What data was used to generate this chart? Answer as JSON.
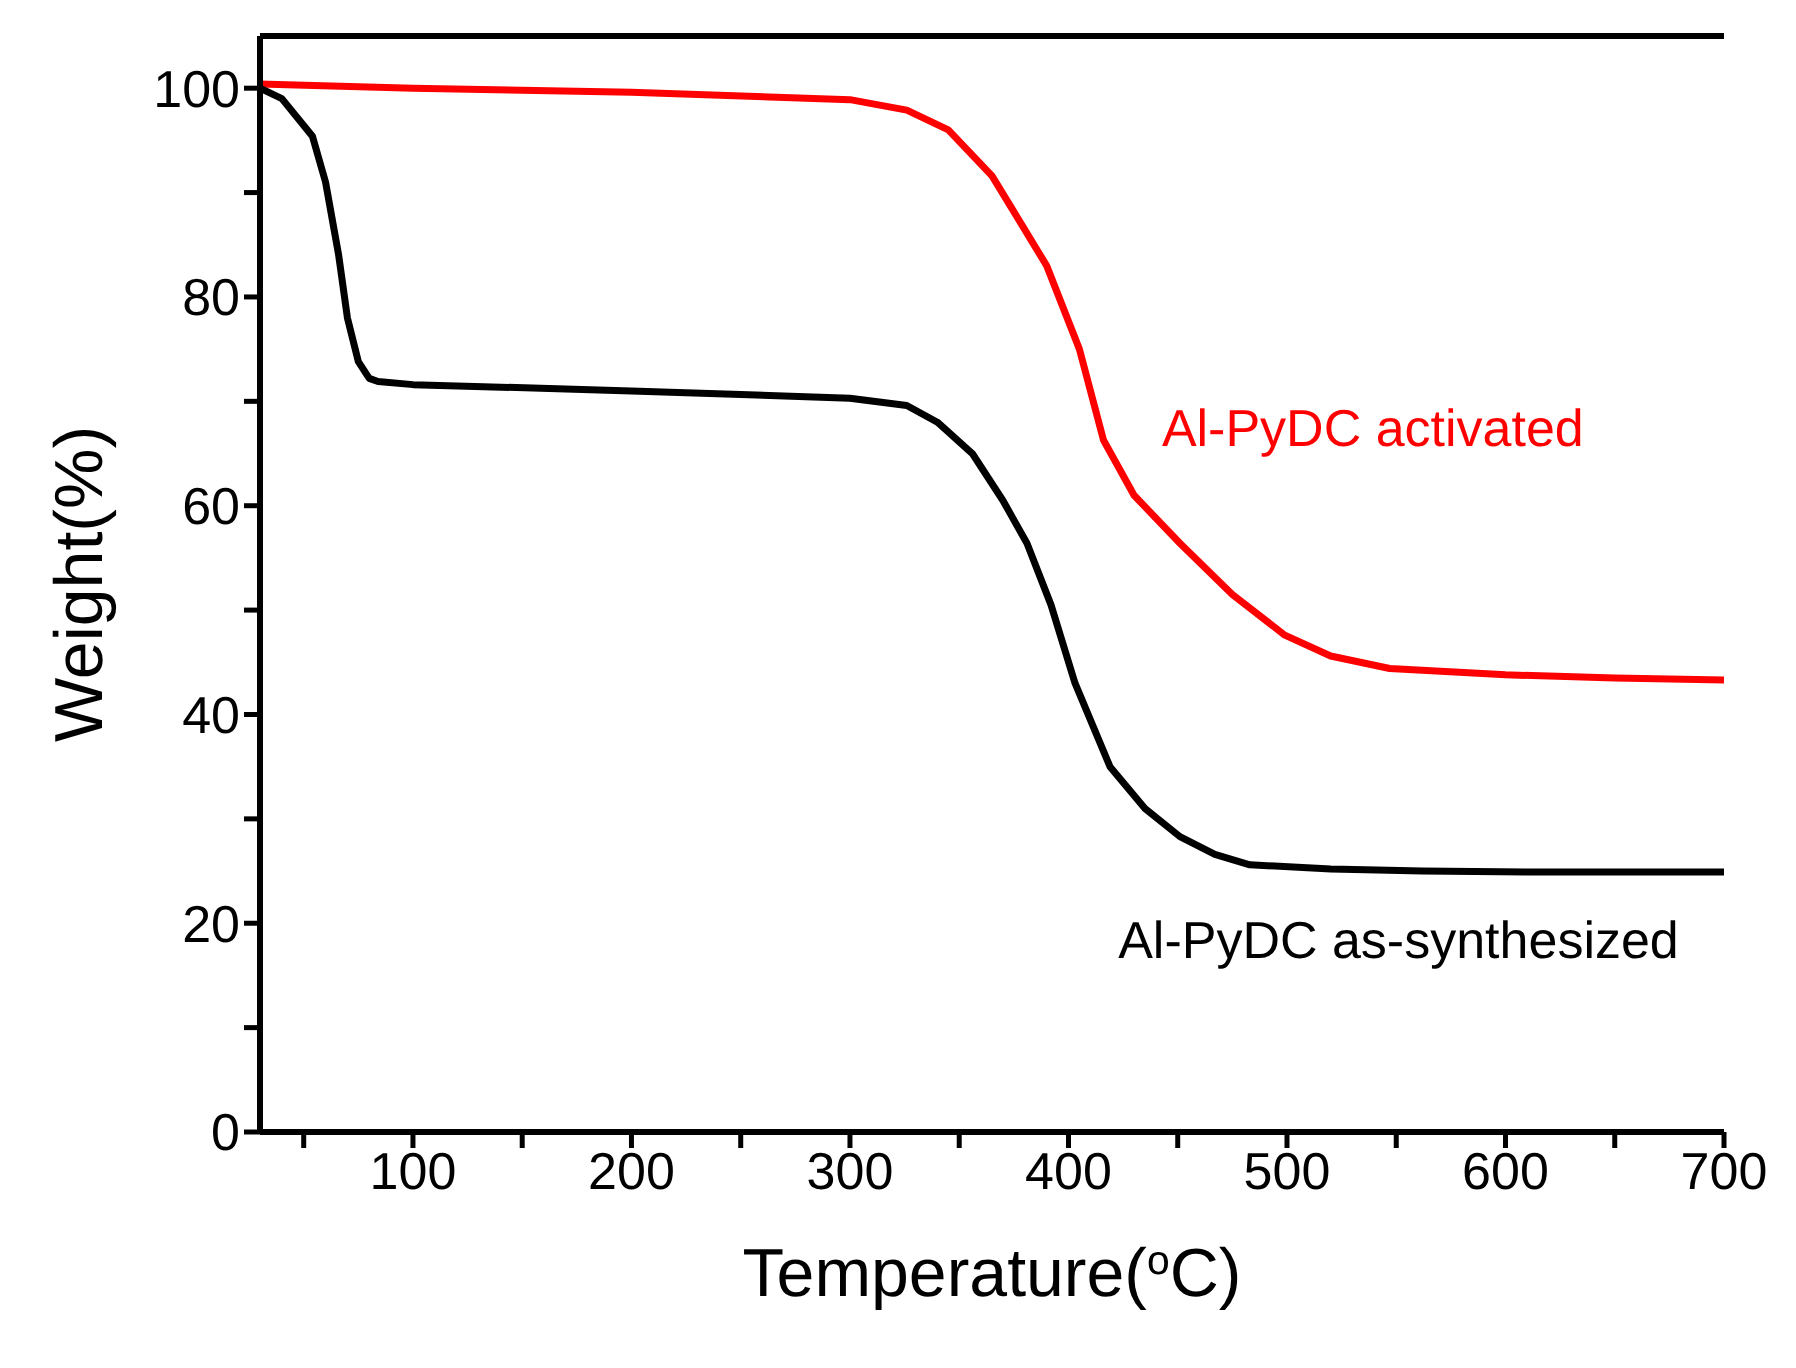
{
  "chart_data": {
    "type": "line",
    "xlabel": "Temperature($^{o}$C)",
    "ylabel": "Weight(%)",
    "xlim": [
      30,
      700
    ],
    "ylim": [
      0,
      105
    ],
    "xticks": [
      {
        "value": 50,
        "label": null
      },
      100,
      {
        "value": 150,
        "label": null
      },
      200,
      {
        "value": 250,
        "label": null
      },
      300,
      {
        "value": 350,
        "label": null
      },
      400,
      {
        "value": 450,
        "label": null
      },
      500,
      {
        "value": 550,
        "label": null
      },
      600,
      {
        "value": 650,
        "label": null
      },
      700
    ],
    "yticks": [
      0,
      {
        "value": 10,
        "label": null
      },
      20,
      {
        "value": 30,
        "label": null
      },
      40,
      {
        "value": 50,
        "label": null
      },
      60,
      {
        "value": 70,
        "label": null
      },
      80,
      {
        "value": 90,
        "label": null
      },
      100
    ],
    "marker": "none",
    "line_style": "solid",
    "series": [
      {
        "name": "Al-PyDC activated",
        "color": "#ff0000",
        "x": [
          30,
          100,
          200,
          300,
          326,
          345,
          365,
          390,
          405,
          416,
          430,
          451,
          475,
          499,
          520,
          547,
          600,
          650,
          700
        ],
        "values": [
          100.4,
          100,
          99.6,
          98.9,
          97.9,
          96,
          91.6,
          83,
          75,
          66.3,
          61,
          56.4,
          51.5,
          47.6,
          45.6,
          44.4,
          43.8,
          43.5,
          43.3
        ]
      },
      {
        "name": "Al-PyDC as-synthesized",
        "color": "#000000",
        "x": [
          30,
          40,
          54,
          60,
          66,
          70,
          75,
          80,
          84,
          100,
          200,
          300,
          326,
          340,
          356,
          370,
          381,
          392,
          403,
          419,
          435,
          451,
          467,
          483,
          520,
          562,
          620,
          700
        ],
        "values": [
          100,
          99,
          95.4,
          91,
          84,
          78,
          73.8,
          72.2,
          71.9,
          71.6,
          71,
          70.3,
          69.6,
          68,
          65,
          60.5,
          56.4,
          50.5,
          43,
          35,
          31,
          28.3,
          26.6,
          25.6,
          25.2,
          25,
          24.9,
          24.9
        ]
      }
    ]
  }
}
